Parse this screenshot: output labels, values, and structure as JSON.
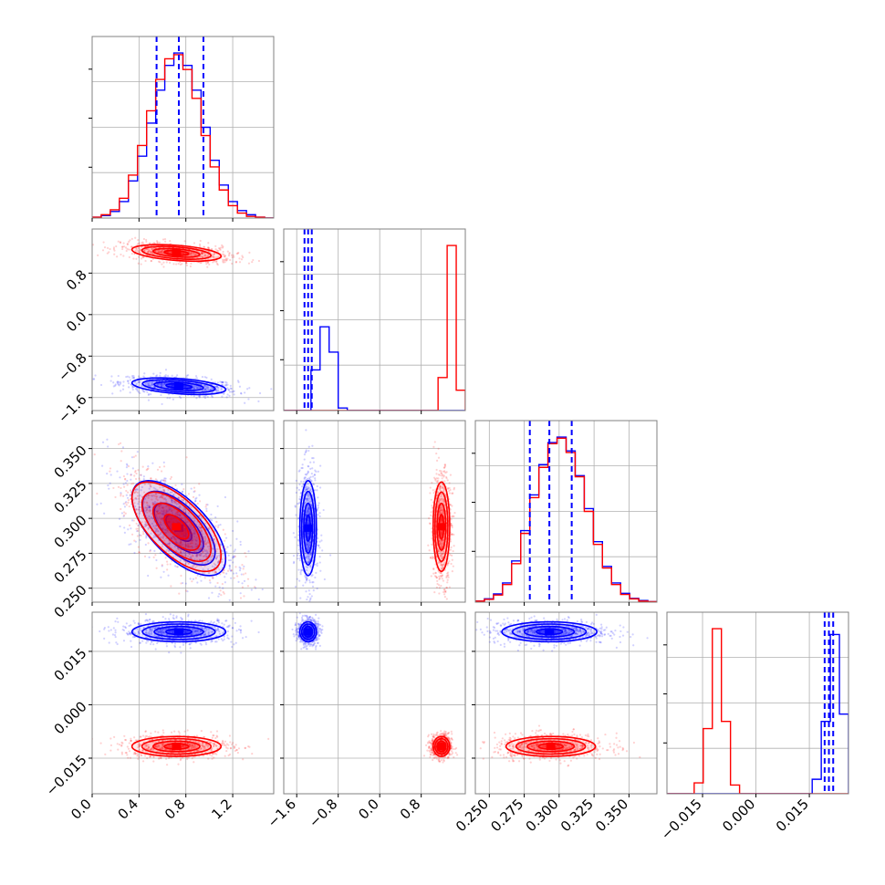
{
  "chart_data": {
    "type": "corner",
    "parameters": [
      "p0",
      "p1",
      "p2",
      "p3"
    ],
    "ranges": [
      [
        0.0,
        1.55
      ],
      [
        -1.85,
        1.65
      ],
      [
        0.24,
        0.37
      ],
      [
        -0.025,
        0.026
      ]
    ],
    "tick_values": [
      [
        0.0,
        0.4,
        0.8,
        1.2
      ],
      [
        -1.6,
        -0.8,
        0.0,
        0.8
      ],
      [
        0.25,
        0.275,
        0.3,
        0.325,
        0.35
      ],
      [
        -0.015,
        0.0,
        0.015
      ]
    ],
    "tick_labels": [
      [
        "0.0",
        "0.4",
        "0.8",
        "1.2"
      ],
      [
        "−1.6",
        "−0.8",
        "0.0",
        "0.8"
      ],
      [
        "0.250",
        "0.275",
        "0.300",
        "0.325",
        "0.350"
      ],
      [
        "−0.015",
        "0.000",
        "0.015"
      ]
    ],
    "colors": {
      "blue": "#0000ff",
      "red": "#ff0000",
      "frame": "#808080",
      "grid": "#b0b0b0"
    },
    "quantiles": [
      {
        "blue": [
          0.55,
          0.74,
          0.95
        ]
      },
      {
        "blue": [
          -1.45,
          -1.38,
          -1.31
        ]
      },
      {
        "blue": [
          0.279,
          0.293,
          0.309
        ]
      },
      {
        "blue": [
          0.0193,
          0.0205,
          0.0217
        ]
      }
    ],
    "series": [
      {
        "color": "blue",
        "means": [
          0.74,
          -1.38,
          0.293,
          0.0205
        ],
        "sds": [
          0.2,
          0.08,
          0.017,
          0.0014
        ],
        "corr": {
          "0-1": -0.4,
          "0-2": -0.65
        }
      },
      {
        "color": "red",
        "means": [
          0.72,
          1.19,
          0.294,
          -0.0117
        ],
        "sds": [
          0.19,
          0.08,
          0.016,
          0.0014
        ],
        "corr": {
          "0-1": -0.4,
          "0-2": -0.65
        }
      }
    ],
    "histograms": [
      {
        "blue": [
          1,
          3,
          8,
          20,
          45,
          75,
          115,
          155,
          185,
          200,
          185,
          155,
          110,
          70,
          40,
          20,
          9,
          4,
          1,
          0
        ],
        "red": [
          1,
          4,
          10,
          24,
          52,
          88,
          130,
          168,
          193,
          198,
          180,
          145,
          100,
          62,
          34,
          15,
          6,
          2,
          1,
          0
        ]
      },
      {
        "blue": [
          0,
          0,
          0,
          160,
          330,
          230,
          10,
          0,
          0,
          0,
          0,
          0,
          0,
          0,
          0,
          0,
          0,
          0,
          0,
          0
        ],
        "red": [
          0,
          0,
          0,
          0,
          0,
          0,
          0,
          0,
          0,
          0,
          0,
          0,
          0,
          0,
          0,
          0,
          0,
          130,
          650,
          80
        ]
      },
      {
        "blue": [
          2,
          6,
          15,
          35,
          75,
          130,
          195,
          250,
          290,
          300,
          275,
          230,
          170,
          110,
          65,
          35,
          16,
          7,
          3,
          1
        ],
        "red": [
          2,
          5,
          13,
          32,
          70,
          125,
          190,
          245,
          288,
          298,
          272,
          228,
          165,
          105,
          62,
          32,
          14,
          6,
          2,
          1
        ]
      },
      {
        "blue": [
          0,
          0,
          0,
          0,
          0,
          0,
          0,
          0,
          0,
          0,
          0,
          0,
          0,
          0,
          0,
          0,
          20,
          100,
          220,
          110
        ],
        "red": [
          0,
          0,
          0,
          15,
          90,
          228,
          100,
          12,
          0,
          0,
          0,
          0,
          0,
          0,
          0,
          0,
          0,
          0,
          0,
          0
        ]
      }
    ]
  }
}
